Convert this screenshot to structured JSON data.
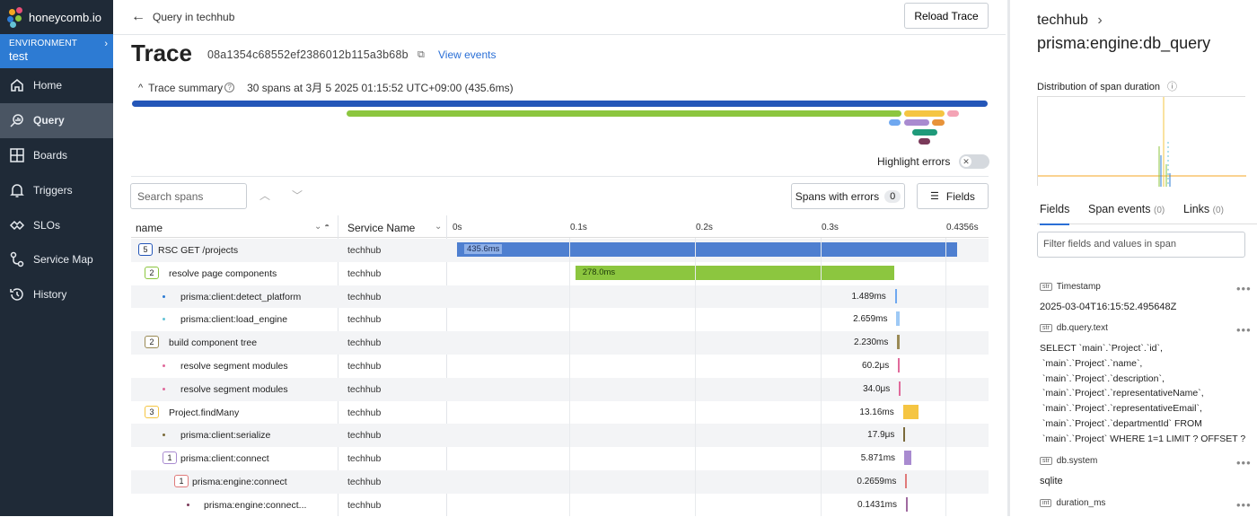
{
  "sidebar": {
    "logo_text": "honeycomb.io",
    "env_label": "ENVIRONMENT",
    "env_name": "test",
    "items": [
      {
        "label": "Home",
        "icon": "home-icon"
      },
      {
        "label": "Query",
        "icon": "query-icon",
        "active": true
      },
      {
        "label": "Boards",
        "icon": "boards-icon"
      },
      {
        "label": "Triggers",
        "icon": "bell-icon"
      },
      {
        "label": "SLOs",
        "icon": "slo-icon"
      },
      {
        "label": "Service Map",
        "icon": "service-map-icon"
      },
      {
        "label": "History",
        "icon": "history-icon"
      }
    ]
  },
  "header": {
    "back_label": "Query in techhub",
    "reload_label": "Reload Trace",
    "title": "Trace",
    "trace_id": "08a1354c68552ef2386012b115a3b68b",
    "view_events": "View events"
  },
  "summary": {
    "label": "Trace summary",
    "text": "30 spans at 3月 5 2025 01:15:52 UTC+09:00 (435.6ms)"
  },
  "highlight_errors": "Highlight errors",
  "controls": {
    "search_placeholder": "Search spans",
    "errors_label": "Spans with errors",
    "errors_count": "0",
    "fields_label": "Fields"
  },
  "table": {
    "col_name": "name",
    "col_service": "Service Name",
    "ticks": [
      "0s",
      "0.1s",
      "0.2s",
      "0.3s",
      "0.4356s"
    ],
    "total_ms": 435.6,
    "rows": [
      {
        "name": "RSC GET /projects",
        "service": "techhub",
        "badge": "5",
        "duration": "435.6ms",
        "start_ms": 0,
        "dur_ms": 435.6,
        "color": "#4e7fd0"
      },
      {
        "name": "resolve page components",
        "service": "techhub",
        "badge": "2",
        "duration": "278.0ms",
        "start_ms": 103,
        "dur_ms": 278.0,
        "color": "#8cc63f"
      },
      {
        "name": "prisma:client:detect_platform",
        "service": "techhub",
        "duration": "1.489ms",
        "start_ms": 381.5,
        "dur_ms": 1.489,
        "color": "#6fa8f0"
      },
      {
        "name": "prisma:client:load_engine",
        "service": "techhub",
        "duration": "2.659ms",
        "start_ms": 382.8,
        "dur_ms": 2.659,
        "color": "#9ec9f5"
      },
      {
        "name": "build component tree",
        "service": "techhub",
        "badge": "2",
        "duration": "2.230ms",
        "start_ms": 383.5,
        "dur_ms": 2.23,
        "color": "#9a8a55"
      },
      {
        "name": "resolve segment modules",
        "service": "techhub",
        "duration": "60.2μs",
        "start_ms": 384.2,
        "dur_ms": 0.0602,
        "color": "#e06a9b"
      },
      {
        "name": "resolve segment modules",
        "service": "techhub",
        "duration": "34.0μs",
        "start_ms": 385.0,
        "dur_ms": 0.034,
        "color": "#e06a9b"
      },
      {
        "name": "Project.findMany",
        "service": "techhub",
        "badge": "3",
        "duration": "13.16ms",
        "start_ms": 388.5,
        "dur_ms": 13.16,
        "color": "#f5c542"
      },
      {
        "name": "prisma:client:serialize",
        "service": "techhub",
        "duration": "17.9μs",
        "start_ms": 389.0,
        "dur_ms": 0.0179,
        "color": "#7a6a3a"
      },
      {
        "name": "prisma:client:connect",
        "service": "techhub",
        "badge": "1",
        "duration": "5.871ms",
        "start_ms": 389.5,
        "dur_ms": 5.871,
        "color": "#a98bd0"
      },
      {
        "name": "prisma:engine:connect",
        "service": "techhub",
        "badge": "1",
        "duration": "0.2659ms",
        "start_ms": 390.5,
        "dur_ms": 0.2659,
        "color": "#e07a7a"
      },
      {
        "name": "prisma:engine:connect...",
        "service": "techhub",
        "duration": "0.1431ms",
        "start_ms": 391.0,
        "dur_ms": 0.1431,
        "color": "#a06aa0"
      }
    ]
  },
  "panel": {
    "service": "techhub",
    "span_name": "prisma:engine:db_query",
    "dist_label": "Distribution of span duration",
    "tabs": [
      {
        "label": "Fields",
        "count": ""
      },
      {
        "label": "Span events",
        "count": "(0)"
      },
      {
        "label": "Links",
        "count": "(0)"
      }
    ],
    "filter_placeholder": "Filter fields and values in span",
    "fields": [
      {
        "type": "str",
        "name": "Timestamp",
        "value": "2025-03-04T16:15:52.495648Z"
      },
      {
        "type": "str",
        "name": "db.query.text",
        "value": "SELECT `main`.`Project`.`id`,\n `main`.`Project`.`name`,\n `main`.`Project`.`description`,\n `main`.`Project`.`representativeName`,\n `main`.`Project`.`representativeEmail`,\n `main`.`Project`.`departmentId` FROM\n `main`.`Project` WHERE 1=1 LIMIT ? OFFSET ?"
      },
      {
        "type": "str",
        "name": "db.system",
        "value": "sqlite"
      },
      {
        "type": "int",
        "name": "duration_ms",
        "value": ""
      }
    ]
  }
}
